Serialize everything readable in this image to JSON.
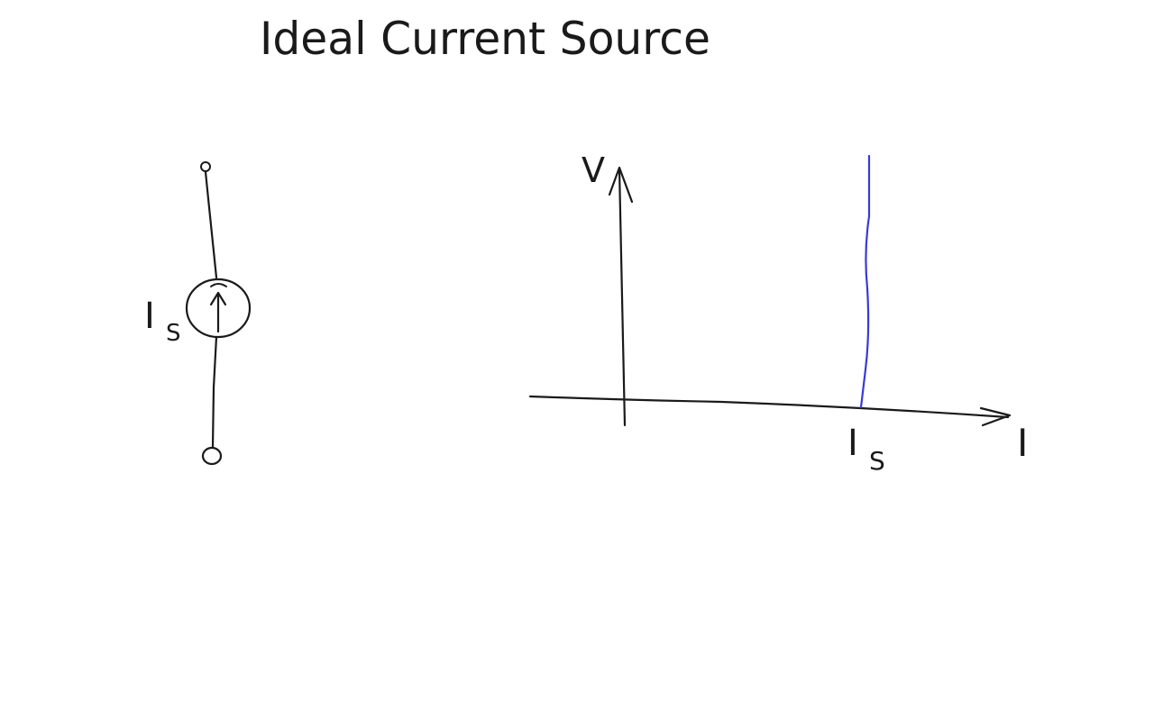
{
  "title": "Ideal Current Source",
  "circuit": {
    "source_label": "I",
    "source_subscript": "S"
  },
  "graph": {
    "y_axis_label": "V",
    "x_axis_label": "I",
    "x_tick_label": "I",
    "x_tick_subscript": "S"
  },
  "colors": {
    "ink": "#1a1a1a",
    "characteristic": "#3a3ad6",
    "background": "#ffffff"
  }
}
